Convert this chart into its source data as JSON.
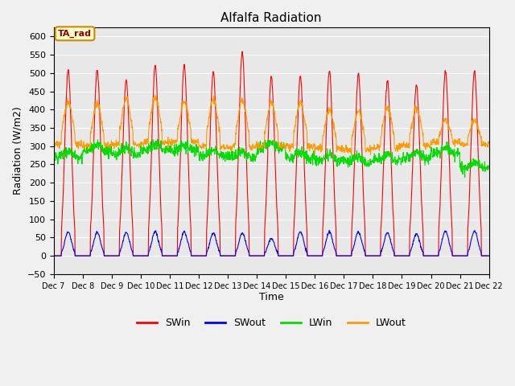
{
  "title": "Alfalfa Radiation",
  "xlabel": "Time",
  "ylabel": "Radiation (W/m2)",
  "ylim": [
    -50,
    625
  ],
  "yticks": [
    -50,
    0,
    50,
    100,
    150,
    200,
    250,
    300,
    350,
    400,
    450,
    500,
    550,
    600
  ],
  "background_color": "#f0f0f0",
  "plot_bg_color": "#e8e8e8",
  "annotation_text": "TA_rad",
  "annotation_bg": "#ffffcc",
  "annotation_border": "#cc8800",
  "series": {
    "SWin": {
      "color": "#ff0000",
      "label": "SWin"
    },
    "SWout": {
      "color": "#0000ff",
      "label": "SWout"
    },
    "LWin": {
      "color": "#00dd00",
      "label": "LWin"
    },
    "LWout": {
      "color": "#ff9900",
      "label": "LWout"
    }
  },
  "n_days": 15,
  "start_day": 7,
  "hours_per_day": 24,
  "dt_hours": 0.25,
  "SWin_peaks": [
    507,
    508,
    480,
    520,
    520,
    502,
    557,
    488,
    490,
    507,
    498,
    480,
    467,
    505,
    505
  ],
  "SWout_peaks": [
    65,
    64,
    63,
    65,
    65,
    62,
    62,
    47,
    65,
    65,
    65,
    63,
    60,
    67,
    68
  ],
  "LWin_base": [
    272,
    288,
    280,
    290,
    288,
    274,
    270,
    295,
    268,
    260,
    256,
    262,
    268,
    280,
    240
  ],
  "LWin_noise": [
    8,
    8,
    8,
    8,
    8,
    8,
    8,
    8,
    8,
    8,
    8,
    8,
    8,
    8,
    8
  ],
  "LWout_base": [
    305,
    302,
    305,
    310,
    312,
    298,
    298,
    300,
    300,
    295,
    290,
    296,
    302,
    310,
    305
  ],
  "LWout_peaks": [
    420,
    415,
    430,
    435,
    420,
    430,
    425,
    420,
    420,
    400,
    395,
    410,
    405,
    370,
    370
  ],
  "LWout_noise": [
    5,
    5,
    5,
    5,
    5,
    5,
    5,
    5,
    5,
    5,
    5,
    5,
    5,
    5,
    5
  ],
  "figwidth": 6.4,
  "figheight": 4.8,
  "dpi": 100
}
